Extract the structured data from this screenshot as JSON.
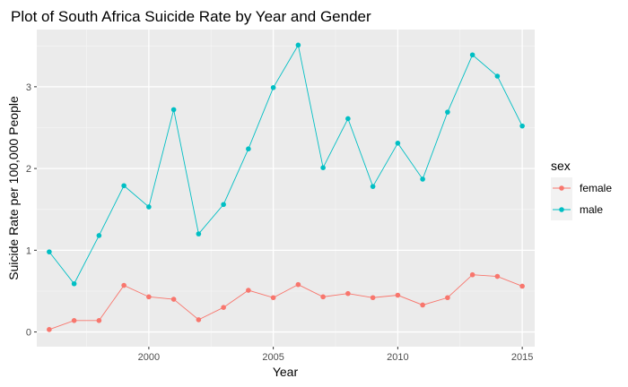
{
  "chart_data": {
    "type": "line",
    "title": "Plot of South Africa Suicide Rate by Year and Gender",
    "xlabel": "Year",
    "ylabel": "Suicide Rate per 100,000 People",
    "xlim": [
      1995.5,
      2015.5
    ],
    "ylim": [
      -0.18,
      3.7
    ],
    "xticks": [
      2000,
      2005,
      2010,
      2015
    ],
    "xtick_labels": [
      "2000",
      "2005",
      "2010",
      "2015"
    ],
    "yticks": [
      0,
      1,
      2,
      3
    ],
    "ytick_labels": [
      "0",
      "1",
      "2",
      "3"
    ],
    "grid": true,
    "legend": {
      "title": "sex",
      "position": "right"
    },
    "x": [
      1996,
      1997,
      1998,
      1999,
      2000,
      2001,
      2002,
      2003,
      2004,
      2005,
      2006,
      2007,
      2008,
      2009,
      2010,
      2011,
      2012,
      2013,
      2014,
      2015
    ],
    "series": [
      {
        "name": "female",
        "color": "#F8766D",
        "values": [
          0.03,
          0.14,
          0.14,
          0.57,
          0.43,
          0.4,
          0.15,
          0.3,
          0.51,
          0.42,
          0.58,
          0.43,
          0.47,
          0.42,
          0.45,
          0.33,
          0.42,
          0.7,
          0.68,
          0.56
        ]
      },
      {
        "name": "male",
        "color": "#00BFC4",
        "values": [
          0.98,
          0.59,
          1.18,
          1.79,
          1.53,
          2.72,
          1.2,
          1.56,
          2.24,
          2.99,
          3.51,
          2.01,
          2.61,
          1.78,
          2.31,
          1.87,
          2.69,
          3.39,
          3.13,
          2.52
        ]
      }
    ]
  }
}
